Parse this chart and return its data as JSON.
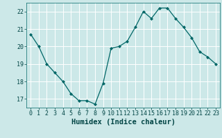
{
  "x": [
    0,
    1,
    2,
    3,
    4,
    5,
    6,
    7,
    8,
    9,
    10,
    11,
    12,
    13,
    14,
    15,
    16,
    17,
    18,
    19,
    20,
    21,
    22,
    23
  ],
  "y": [
    20.7,
    20.0,
    19.0,
    18.5,
    18.0,
    17.3,
    16.9,
    16.9,
    16.7,
    17.9,
    19.9,
    20.0,
    20.3,
    21.1,
    22.0,
    21.6,
    22.2,
    22.2,
    21.6,
    21.1,
    20.5,
    19.7,
    19.4,
    19.0
  ],
  "line_color": "#006666",
  "marker": "D",
  "marker_size": 2.0,
  "bg_color": "#cce8e8",
  "grid_color": "#ffffff",
  "xlabel": "Humidex (Indice chaleur)",
  "ylim": [
    16.5,
    22.5
  ],
  "xlim": [
    -0.5,
    23.5
  ],
  "yticks": [
    17,
    18,
    19,
    20,
    21,
    22
  ],
  "xticks": [
    0,
    1,
    2,
    3,
    4,
    5,
    6,
    7,
    8,
    9,
    10,
    11,
    12,
    13,
    14,
    15,
    16,
    17,
    18,
    19,
    20,
    21,
    22,
    23
  ],
  "tick_fontsize": 6,
  "xlabel_fontsize": 7.5,
  "linewidth": 0.9
}
